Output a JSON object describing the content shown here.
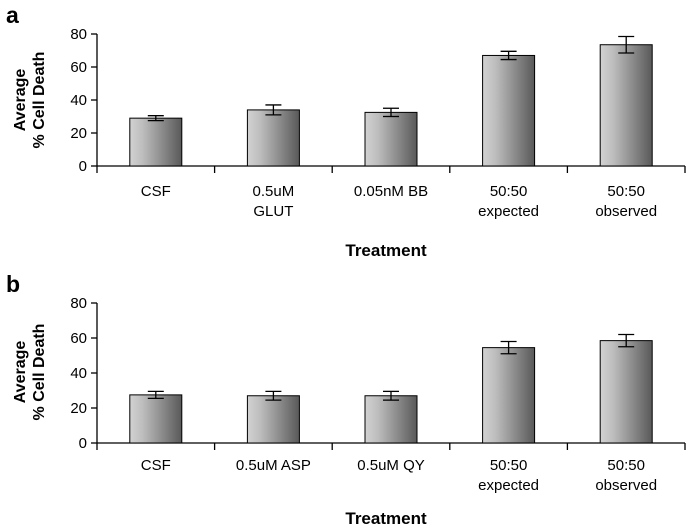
{
  "chart_data": [
    {
      "type": "bar",
      "panel": "a",
      "categories": [
        [
          "CSF"
        ],
        [
          "0.5uM",
          "GLUT"
        ],
        [
          "0.05nM BB"
        ],
        [
          "50:50",
          "expected"
        ],
        [
          "50:50",
          "observed"
        ]
      ],
      "values": [
        29,
        34,
        32.5,
        67,
        73.5
      ],
      "errors": [
        1.5,
        3,
        2.5,
        2.5,
        5
      ],
      "xlabel": "Treatment",
      "ylabel": [
        "Average",
        "% Cell Death"
      ],
      "ylim": [
        0,
        80
      ],
      "yticks": [
        0,
        20,
        40,
        60,
        80
      ],
      "grid": false,
      "legend": "none"
    },
    {
      "type": "bar",
      "panel": "b",
      "categories": [
        [
          "CSF"
        ],
        [
          "0.5uM ASP"
        ],
        [
          "0.5uM QY"
        ],
        [
          "50:50",
          "expected"
        ],
        [
          "50:50",
          "observed"
        ]
      ],
      "values": [
        27.5,
        27,
        27,
        54.5,
        58.5
      ],
      "errors": [
        2,
        2.5,
        2.5,
        3.5,
        3.5
      ],
      "xlabel": "Treatment",
      "ylabel": [
        "Average",
        "% Cell Death"
      ],
      "ylim": [
        0,
        80
      ],
      "yticks": [
        0,
        20,
        40,
        60,
        80
      ],
      "grid": false,
      "legend": "none"
    }
  ],
  "colors": {
    "bar_light": "#d2d2d2",
    "bar_dark": "#595959",
    "axis": "#000000"
  }
}
